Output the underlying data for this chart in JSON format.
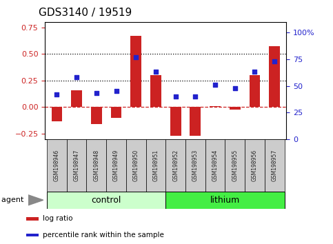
{
  "title": "GDS3140 / 19519",
  "samples": [
    "GSM198946",
    "GSM198947",
    "GSM198948",
    "GSM198949",
    "GSM198950",
    "GSM198951",
    "GSM198952",
    "GSM198953",
    "GSM198954",
    "GSM198955",
    "GSM198956",
    "GSM198957"
  ],
  "log_ratio": [
    -0.13,
    0.16,
    -0.16,
    -0.1,
    0.67,
    0.3,
    -0.27,
    -0.27,
    0.01,
    -0.02,
    0.3,
    0.57
  ],
  "percentile_rank": [
    42,
    58,
    43,
    45,
    77,
    63,
    40,
    40,
    51,
    48,
    63,
    73
  ],
  "groups": [
    {
      "label": "control",
      "start": 0,
      "end": 5,
      "color": "#ccffcc"
    },
    {
      "label": "lithium",
      "start": 6,
      "end": 11,
      "color": "#44ee44"
    }
  ],
  "group_label": "agent",
  "ylim_left": [
    -0.3,
    0.8
  ],
  "ylim_right": [
    0,
    110
  ],
  "yticks_left": [
    -0.25,
    0,
    0.25,
    0.5,
    0.75
  ],
  "yticks_right": [
    0,
    25,
    50,
    75,
    100
  ],
  "hline_dotted": [
    0.25,
    0.5
  ],
  "zero_line_color": "#cc2222",
  "bar_color": "#cc2222",
  "dot_color": "#2222cc",
  "bg_color": "#ffffff",
  "box_color": "#cccccc",
  "legend_items": [
    "log ratio",
    "percentile rank within the sample"
  ],
  "title_fontsize": 11,
  "tick_fontsize": 8,
  "sample_fontsize": 5.5,
  "group_fontsize": 9,
  "legend_fontsize": 7.5
}
